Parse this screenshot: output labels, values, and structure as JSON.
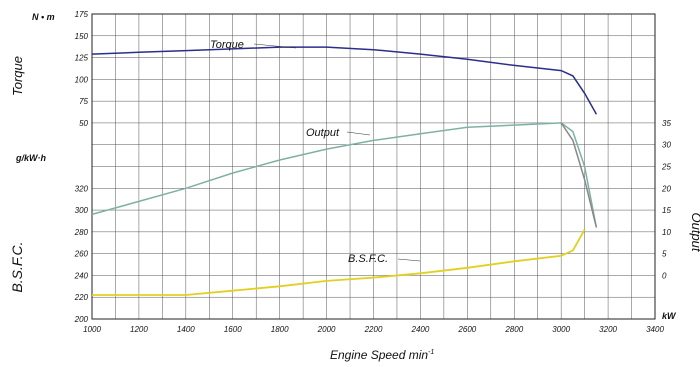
{
  "chart_data": {
    "type": "line",
    "x": {
      "label": "Engine Speed  min",
      "label_superscript": "-1",
      "min": 1000,
      "max": 3400,
      "ticks": [
        "1000",
        "1200",
        "1400",
        "1600",
        "1800",
        "2000",
        "2200",
        "2400",
        "2600",
        "2800",
        "3000",
        "3200",
        "3400"
      ]
    },
    "left_axes": {
      "torque": {
        "unit": "N • m",
        "ticks": [
          "175",
          "150",
          "125",
          "100",
          "75",
          "50"
        ],
        "title": "Torque"
      },
      "bsfc": {
        "unit": "g/kW·h",
        "ticks": [
          "320",
          "300",
          "280",
          "260",
          "240",
          "220",
          "200"
        ],
        "title": "B.S.F.C."
      }
    },
    "right_axis": {
      "title": "Output",
      "unit": "kW",
      "ticks": [
        "35",
        "30",
        "25",
        "20",
        "15",
        "10",
        "5",
        "0"
      ]
    },
    "series": [
      {
        "name": "Torque",
        "color": "#2b2e8a",
        "x": [
          1000,
          1200,
          1400,
          1600,
          1800,
          2000,
          2200,
          2400,
          2600,
          2800,
          3000,
          3050,
          3100,
          3150
        ],
        "y": [
          129,
          131,
          133,
          135,
          137,
          137,
          134,
          129,
          123,
          116,
          110,
          104,
          84,
          60
        ]
      },
      {
        "name": "Output",
        "color": "#7fb0a6",
        "x": [
          1000,
          1200,
          1400,
          1600,
          1800,
          2000,
          2200,
          2400,
          2600,
          2800,
          3000,
          3050,
          3100,
          3150
        ],
        "y": [
          14,
          17,
          20,
          23.5,
          26.5,
          29,
          31,
          32.5,
          34,
          34.5,
          35,
          33,
          25,
          11
        ]
      },
      {
        "name": "B.S.F.C.",
        "color": "#e2d020",
        "x": [
          1000,
          1200,
          1400,
          1600,
          1800,
          2000,
          2200,
          2400,
          2600,
          2800,
          3000,
          3050,
          3100
        ],
        "y": [
          222,
          222,
          222,
          226,
          230,
          235,
          238,
          242,
          247,
          253,
          258,
          263,
          282
        ]
      }
    ],
    "overlay": {
      "color": "#888888",
      "x": [
        3000,
        3050,
        3100,
        3150
      ],
      "y": [
        35,
        31,
        22,
        11
      ]
    },
    "grid": true
  }
}
